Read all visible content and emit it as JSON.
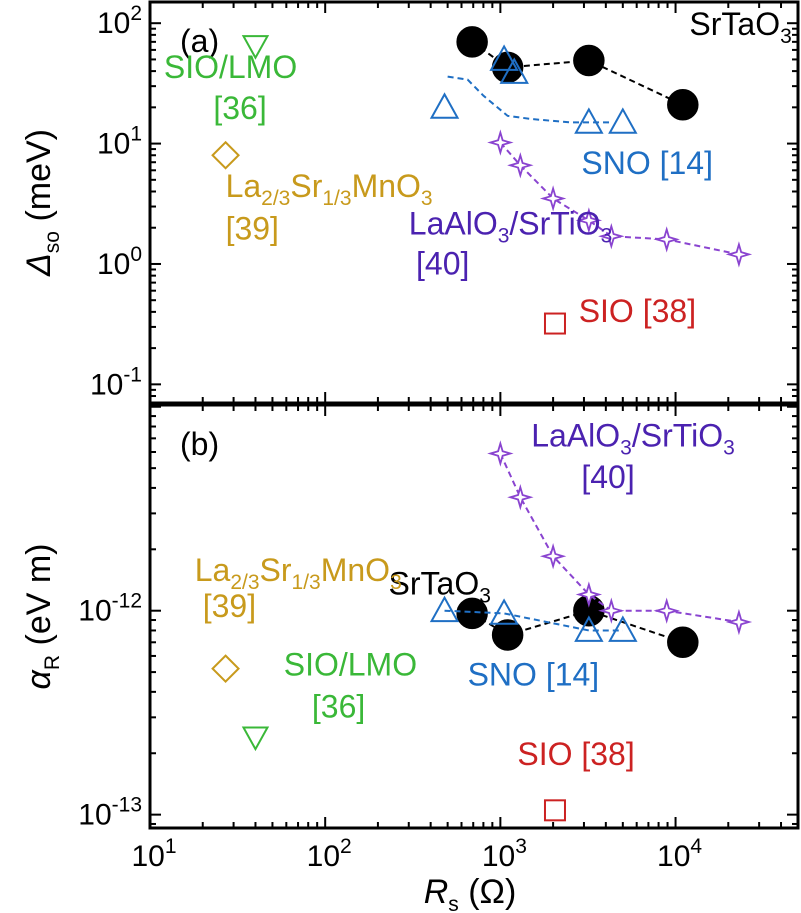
{
  "chart_data": [
    {
      "type": "scatter",
      "panel_label": "(a)",
      "xscale": "log",
      "yscale": "log",
      "xlim": [
        10,
        50000
      ],
      "ylim": [
        0.07,
        150
      ],
      "x_ticks": [
        {
          "base": "10",
          "exp": "1"
        },
        {
          "base": "10",
          "exp": "2"
        },
        {
          "base": "10",
          "exp": "3"
        },
        {
          "base": "10",
          "exp": "4"
        }
      ],
      "y_ticks": [
        {
          "value": 100,
          "base": "10",
          "exp": "2"
        },
        {
          "value": 10,
          "base": "10",
          "exp": "1"
        },
        {
          "value": 1,
          "base": "10",
          "exp": "0"
        },
        {
          "value": 0.1,
          "base": "10",
          "exp": "-1"
        }
      ],
      "ylabel": {
        "main": "Δ",
        "sub": "so",
        "unit": " (meV)"
      },
      "series": [
        {
          "name": "SrTaO3",
          "label_parts": [
            {
              "t": "SrTaO",
              "s": ""
            },
            {
              "t": "3",
              "s": "sub"
            }
          ],
          "label_color": "#000000",
          "label_at": [
            12000,
            80
          ],
          "marker": "circle",
          "color": "#000000",
          "fill": "#000000",
          "line": true,
          "line_color": "#000000",
          "x": [
            690,
            1100,
            3200,
            11000
          ],
          "y": [
            70,
            43,
            49,
            21
          ]
        },
        {
          "name": "SNO [14]",
          "label_parts": [
            {
              "t": "SNO [14]",
              "s": ""
            }
          ],
          "label_color": "#1f6fc4",
          "label_at": [
            2900,
            5.6
          ],
          "marker": "triangle-up",
          "color": "#1f6fc4",
          "fill": "none",
          "line": false,
          "x": [
            480,
            1050,
            1200,
            3200,
            5000
          ],
          "y": [
            20,
            50,
            39,
            15,
            15
          ]
        },
        {
          "name": "LaAlO3/SrTiO3 [40]",
          "label_parts": [
            {
              "t": "LaAlO",
              "s": ""
            },
            {
              "t": "3",
              "s": "sub"
            },
            {
              "t": "/SrTiO",
              "s": ""
            },
            {
              "t": "3",
              "s": "sub"
            }
          ],
          "label2": "[40]",
          "label_color": "#4b22b0",
          "label_at": [
            300,
            1.75
          ],
          "label2_at": [
            330,
            0.82
          ],
          "marker": "star4",
          "color": "#8a44d0",
          "fill": "none",
          "line": true,
          "line_color": "#8a44d0",
          "x": [
            1000,
            1300,
            2000,
            3200,
            4300,
            8900,
            23000
          ],
          "y": [
            10.2,
            6.6,
            3.5,
            2.3,
            1.7,
            1.6,
            1.2
          ]
        },
        {
          "name": "SIO/LMO [36]",
          "label_parts": [
            {
              "t": "SIO/LMO",
              "s": ""
            }
          ],
          "label2": "[36]",
          "label_color": "#3ab838",
          "label_at": [
            12,
            35
          ],
          "label2_at": [
            23,
            16
          ],
          "marker": "triangle-down",
          "color": "#3ab838",
          "fill": "none",
          "line": false,
          "x": [
            40
          ],
          "y": [
            65
          ]
        },
        {
          "name": "La2/3Sr1/3MnO3 [39]",
          "label_parts": [
            {
              "t": "La",
              "s": ""
            },
            {
              "t": "2/3",
              "s": "sub"
            },
            {
              "t": "Sr",
              "s": ""
            },
            {
              "t": "1/3",
              "s": "sub"
            },
            {
              "t": "MnO",
              "s": ""
            },
            {
              "t": "3",
              "s": "sub"
            }
          ],
          "label2": "[39]",
          "label_color": "#c89a1c",
          "label_at": [
            27,
            3.6
          ],
          "label2_at": [
            27,
            1.6
          ],
          "marker": "diamond",
          "color": "#c89a1c",
          "fill": "none",
          "line": false,
          "x": [
            27
          ],
          "y": [
            8
          ]
        },
        {
          "name": "SIO [38]",
          "label_parts": [
            {
              "t": "SIO [38]",
              "s": ""
            }
          ],
          "label_color": "#cc2222",
          "label_at": [
            2800,
            0.33
          ],
          "marker": "square",
          "color": "#cc2222",
          "fill": "none",
          "line": false,
          "x": [
            2050
          ],
          "y": [
            0.32
          ]
        }
      ],
      "guide_lines": [
        {
          "color": "#1f6fc4",
          "x": [
            500,
            650,
            800,
            1100,
            1500,
            2500,
            4200
          ],
          "y": [
            36,
            34,
            25,
            17,
            16,
            15,
            15
          ]
        }
      ]
    },
    {
      "type": "scatter",
      "panel_label": "(b)",
      "xscale": "log",
      "yscale": "log",
      "xlim": [
        10,
        50000
      ],
      "ylim": [
        8.6e-14,
        1.02e-11
      ],
      "x_ticks": [
        {
          "base": "10",
          "exp": "1"
        },
        {
          "base": "10",
          "exp": "2"
        },
        {
          "base": "10",
          "exp": "3"
        },
        {
          "base": "10",
          "exp": "4"
        }
      ],
      "y_ticks": [
        {
          "value": 1e-12,
          "base": "10",
          "exp": "-12"
        },
        {
          "value": 1e-13,
          "base": "10",
          "exp": "-13"
        }
      ],
      "ylabel": {
        "main": "α",
        "sub": "R",
        "unit": " (eV m)"
      },
      "series": [
        {
          "name": "SrTaO3",
          "label_parts": [
            {
              "t": "SrTaO",
              "s": ""
            },
            {
              "t": "3",
              "s": "sub"
            }
          ],
          "label_color": "#000000",
          "label_at": [
            230,
            1.2e-12
          ],
          "marker": "circle",
          "color": "#000000",
          "fill": "#000000",
          "line": true,
          "line_color": "#000000",
          "x": [
            690,
            1100,
            3200,
            11000
          ],
          "y": [
            9.7e-13,
            7.6e-13,
            1e-12,
            7e-13
          ]
        },
        {
          "name": "SNO [14]",
          "label_parts": [
            {
              "t": "SNO [14]",
              "s": ""
            }
          ],
          "label_color": "#1f6fc4",
          "label_at": [
            650,
            4.3e-13
          ],
          "marker": "triangle-up",
          "color": "#1f6fc4",
          "fill": "none",
          "line": true,
          "line_color": "#1f6fc4",
          "x": [
            480,
            1050,
            3200,
            5000
          ],
          "y": [
            1e-12,
            9.7e-13,
            8e-13,
            8e-13
          ]
        },
        {
          "name": "LaAlO3/SrTiO3 [40]",
          "label_parts": [
            {
              "t": "LaAlO",
              "s": ""
            },
            {
              "t": "3",
              "s": "sub"
            },
            {
              "t": "/SrTiO",
              "s": ""
            },
            {
              "t": "3",
              "s": "sub"
            }
          ],
          "label2": "[40]",
          "label_color": "#4b22b0",
          "label_at": [
            1500,
            6.4e-12
          ],
          "label2_at": [
            2900,
            4e-12
          ],
          "marker": "star4",
          "color": "#8a44d0",
          "fill": "none",
          "line": true,
          "line_color": "#8a44d0",
          "x": [
            1000,
            1300,
            2000,
            3200,
            4300,
            8900,
            23000
          ],
          "y": [
            5.9e-12,
            3.6e-12,
            1.85e-12,
            1.2e-12,
            1e-12,
            1e-12,
            8.8e-13
          ]
        },
        {
          "name": "SIO/LMO [36]",
          "label_parts": [
            {
              "t": "SIO/LMO",
              "s": ""
            }
          ],
          "label_color": "#3ab838",
          "label_at": [
            58,
            4.8e-13
          ],
          "label2": "[36]",
          "label2_at": [
            84,
            3e-13
          ],
          "marker": "triangle-down",
          "color": "#3ab838",
          "fill": "none",
          "line": false,
          "x": [
            40
          ],
          "y": [
            2.4e-13
          ]
        },
        {
          "name": "La2/3Sr1/3MnO3 [39]",
          "label_parts": [
            {
              "t": "La",
              "s": ""
            },
            {
              "t": "2/3",
              "s": "sub"
            },
            {
              "t": "Sr",
              "s": ""
            },
            {
              "t": "1/3",
              "s": "sub"
            },
            {
              "t": "MnO",
              "s": ""
            },
            {
              "t": "3",
              "s": "sub"
            }
          ],
          "label2": "[39]",
          "label_color": "#c89a1c",
          "label_at": [
            18,
            1.4e-12
          ],
          "label2_at": [
            20,
            9.3e-13
          ],
          "marker": "diamond",
          "color": "#c89a1c",
          "fill": "none",
          "line": false,
          "x": [
            27
          ],
          "y": [
            5.2e-13
          ]
        },
        {
          "name": "SIO [38]",
          "label_parts": [
            {
              "t": "SIO [38]",
              "s": ""
            }
          ],
          "label_color": "#cc2222",
          "label_at": [
            1250,
            1.75e-13
          ],
          "marker": "square",
          "color": "#cc2222",
          "fill": "none",
          "line": false,
          "x": [
            2050
          ],
          "y": [
            1.05e-13
          ]
        }
      ],
      "guide_lines": []
    }
  ],
  "xlabel": {
    "main": "R",
    "sub": "s",
    "unit": " (Ω)"
  }
}
